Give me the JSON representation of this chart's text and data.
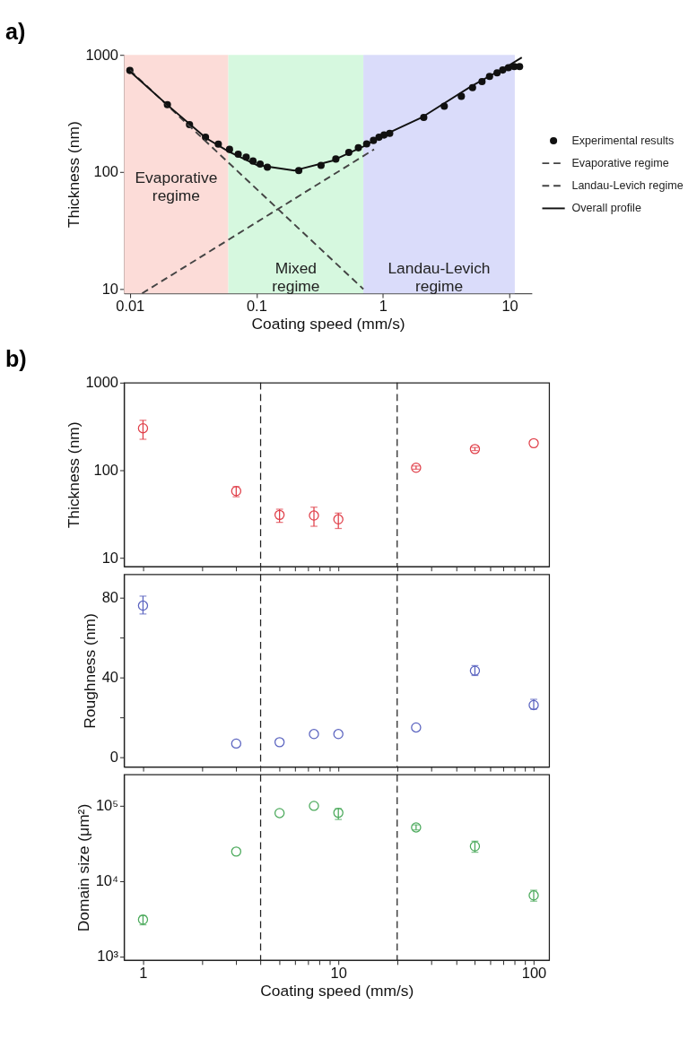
{
  "chart_data": [
    {
      "type": "scatter",
      "title": "a)",
      "xlabel": "Coating speed (mm/s)",
      "ylabel": "Thickness (nm)",
      "log": "xy",
      "xlim": [
        0.009,
        15
      ],
      "ylim": [
        9.2,
        1000
      ],
      "xticks": [
        0.01,
        0.1,
        1,
        10
      ],
      "yticks": [
        10,
        100,
        1000
      ],
      "legend": "right",
      "bands": [
        {
          "axis": "x",
          "from": 0.009,
          "to": 0.06,
          "label": "Evaporative regime",
          "color": "#fcdcd8"
        },
        {
          "axis": "x",
          "from": 0.06,
          "to": 0.7,
          "label": "Mixed regime",
          "color": "#d6f8df"
        },
        {
          "axis": "x",
          "from": 0.7,
          "to": 11,
          "label": "Landau-Levich regime",
          "color": "#dadcfa"
        }
      ],
      "series": [
        {
          "name": "Experimental results",
          "type": "scatter",
          "marker": "circle",
          "color": "#111111",
          "x": [
            0.01,
            0.0198,
            0.0296,
            0.0396,
            0.05,
            0.0613,
            0.0718,
            0.083,
            0.094,
            0.107,
            0.122,
            0.216,
            0.324,
            0.424,
            0.537,
            0.639,
            0.743,
            0.841,
            0.93,
            1.02,
            1.13,
            2.1,
            3.05,
            4.16,
            5.1,
            6.06,
            6.95,
            7.97,
            8.84,
            9.8,
            10.9,
            12.0
          ],
          "values": [
            736,
            376,
            254,
            198,
            173,
            156,
            142,
            134,
            124,
            117,
            110,
            103,
            114,
            129,
            147,
            161,
            174,
            186,
            198,
            207,
            214,
            292,
            364,
            443,
            526,
            591,
            655,
            703,
            743,
            778,
            796,
            796
          ]
        },
        {
          "name": "Evaporative regime",
          "type": "line",
          "line_style": "dashed",
          "color": "#444444",
          "x": [
            0.01,
            0.7
          ],
          "values": [
            740,
            10
          ]
        },
        {
          "name": "Landau-Levich regime",
          "type": "line",
          "line_style": "dashed",
          "color": "#444444",
          "x": [
            0.0125,
            0.85
          ],
          "values": [
            9.2,
            156
          ]
        },
        {
          "name": "Overall profile",
          "type": "line",
          "line_style": "solid",
          "color": "#111111",
          "x": [
            0.0095,
            0.02,
            0.04,
            0.06,
            0.1,
            0.2,
            0.4,
            0.7,
            1,
            2,
            5,
            10,
            12.5
          ],
          "values": [
            760,
            370,
            195,
            150,
            115,
            103,
            125,
            165,
            205,
            290,
            540,
            820,
            950
          ]
        }
      ]
    },
    {
      "type": "scatter",
      "title": "b)",
      "ylabel": "Thickness (nm)",
      "log": "xy",
      "xlim": [
        0.8,
        120
      ],
      "ylim": [
        8,
        1000
      ],
      "tick_labels": "y",
      "xticks": [
        1,
        {
          "value": 2,
          "label": null
        },
        {
          "value": 3,
          "label": null
        },
        {
          "value": 4,
          "label": null
        },
        {
          "value": 5,
          "label": null
        },
        {
          "value": 6,
          "label": null
        },
        {
          "value": 7,
          "label": null
        },
        {
          "value": 8,
          "label": null
        },
        {
          "value": 9,
          "label": null
        },
        10,
        {
          "value": 20,
          "label": null
        },
        {
          "value": 30,
          "label": null
        },
        {
          "value": 40,
          "label": null
        },
        {
          "value": 50,
          "label": null
        },
        {
          "value": 60,
          "label": null
        },
        {
          "value": 70,
          "label": null
        },
        {
          "value": 80,
          "label": null
        },
        {
          "value": 90,
          "label": null
        },
        100
      ],
      "yticks": [
        10,
        100,
        1000
      ],
      "ref_lines": [
        {
          "axis": "x",
          "value": 4,
          "line_style": "dashed",
          "color": "#222222"
        },
        {
          "axis": "x",
          "value": 20,
          "line_style": "dashed",
          "color": "#222222"
        }
      ],
      "series": [
        {
          "color": "#e0404a",
          "marker": "circle",
          "x": [
            1,
            3,
            5,
            7.5,
            10,
            25,
            50,
            100
          ],
          "values": [
            302,
            58,
            31,
            30.5,
            27.6,
            107,
            175,
            204
          ],
          "errors": [
            [
              226,
              372
            ],
            [
              50,
              65
            ],
            [
              25.5,
              36
            ],
            [
              23,
              38
            ],
            [
              21.7,
              32.5
            ],
            [
              103,
              112
            ],
            [
              168,
              182
            ],
            null
          ]
        }
      ]
    },
    {
      "type": "scatter",
      "ylabel": "Roughness (nm)",
      "log": "x",
      "xlim": [
        0.8,
        120
      ],
      "ylim": [
        -5,
        92
      ],
      "tick_labels": "y",
      "xticks": [
        1,
        {
          "value": 2,
          "label": null
        },
        {
          "value": 3,
          "label": null
        },
        {
          "value": 4,
          "label": null
        },
        {
          "value": 5,
          "label": null
        },
        {
          "value": 6,
          "label": null
        },
        {
          "value": 7,
          "label": null
        },
        {
          "value": 8,
          "label": null
        },
        {
          "value": 9,
          "label": null
        },
        10,
        {
          "value": 20,
          "label": null
        },
        {
          "value": 30,
          "label": null
        },
        {
          "value": 40,
          "label": null
        },
        {
          "value": 50,
          "label": null
        },
        {
          "value": 60,
          "label": null
        },
        {
          "value": 70,
          "label": null
        },
        {
          "value": 80,
          "label": null
        },
        {
          "value": 90,
          "label": null
        },
        100
      ],
      "yticks": [
        0,
        {
          "value": 20,
          "label": null
        },
        40,
        {
          "value": 60,
          "label": null
        },
        80
      ],
      "ref_lines": [
        {
          "axis": "x",
          "value": 4,
          "line_style": "dashed",
          "color": "#222222"
        },
        {
          "axis": "x",
          "value": 20,
          "line_style": "dashed",
          "color": "#222222"
        }
      ],
      "series": [
        {
          "color": "#5b64c0",
          "marker": "circle",
          "x": [
            1,
            3,
            5,
            7.5,
            10,
            25,
            50,
            100
          ],
          "values": [
            76.2,
            6.7,
            7.4,
            11.5,
            11.5,
            14.8,
            43.4,
            26.1
          ],
          "errors": [
            [
              72,
              81
            ],
            null,
            null,
            null,
            null,
            null,
            [
              41,
              46
            ],
            [
              24,
              29
            ]
          ]
        }
      ]
    },
    {
      "type": "scatter",
      "xlabel": "Coating speed (mm/s)",
      "ylabel": "Domain size (μm²)",
      "log": "xy",
      "xlim": [
        0.8,
        120
      ],
      "ylim": [
        900,
        260000
      ],
      "xticks": [
        1,
        {
          "value": 2,
          "label": null
        },
        {
          "value": 3,
          "label": null
        },
        {
          "value": 4,
          "label": null
        },
        {
          "value": 5,
          "label": null
        },
        {
          "value": 6,
          "label": null
        },
        {
          "value": 7,
          "label": null
        },
        {
          "value": 8,
          "label": null
        },
        {
          "value": 9,
          "label": null
        },
        10,
        {
          "value": 20,
          "label": null
        },
        {
          "value": 30,
          "label": null
        },
        {
          "value": 40,
          "label": null
        },
        {
          "value": 50,
          "label": null
        },
        {
          "value": 60,
          "label": null
        },
        {
          "value": 70,
          "label": null
        },
        {
          "value": 80,
          "label": null
        },
        {
          "value": 90,
          "label": null
        },
        100
      ],
      "yticks": [
        {
          "value": 1000,
          "label": "10³"
        },
        {
          "value": 10000,
          "label": "10⁴"
        },
        {
          "value": 100000,
          "label": "10⁵"
        }
      ],
      "ref_lines": [
        {
          "axis": "x",
          "value": 4,
          "line_style": "dashed",
          "color": "#222222"
        },
        {
          "axis": "x",
          "value": 20,
          "line_style": "dashed",
          "color": "#222222"
        }
      ],
      "series": [
        {
          "color": "#4caa5c",
          "marker": "circle",
          "x": [
            1,
            3,
            5,
            7.5,
            10,
            25,
            50,
            100
          ],
          "values": [
            3100,
            24800,
            80300,
            100000,
            81000,
            51800,
            29100,
            6500
          ],
          "errors": [
            [
              2650,
              3500
            ],
            null,
            null,
            null,
            [
              66000,
              92000
            ],
            [
              48000,
              56000
            ],
            [
              24300,
              34000
            ],
            [
              5450,
              7600
            ]
          ]
        }
      ]
    }
  ]
}
